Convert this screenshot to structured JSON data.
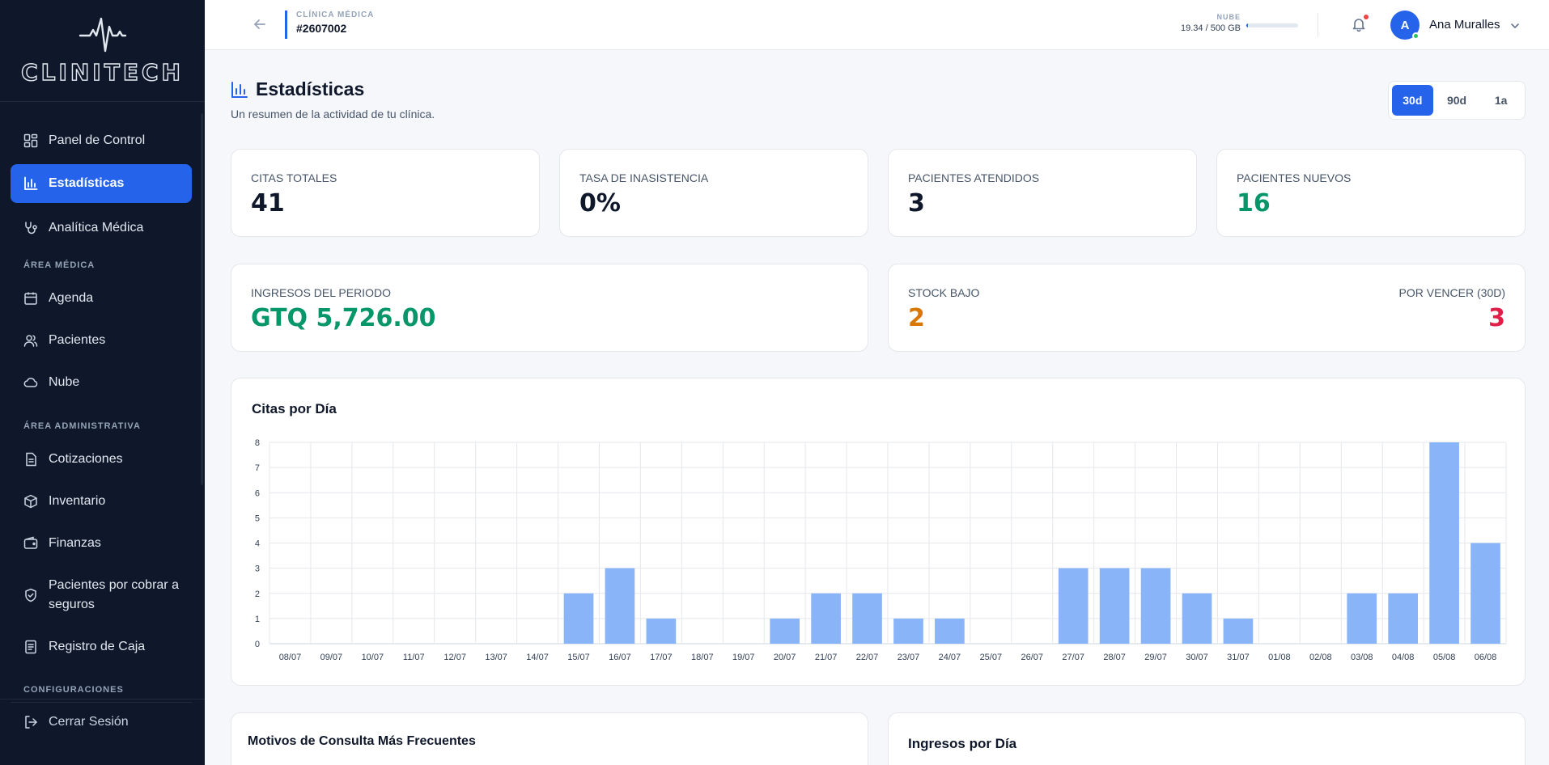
{
  "brand": {
    "name": "CLINITECH"
  },
  "sidebar": {
    "items": [
      {
        "label": "Panel de Control",
        "icon": "dashboard-icon"
      },
      {
        "label": "Estadísticas",
        "icon": "bar-chart-icon",
        "active": true
      },
      {
        "label": "Analítica Médica",
        "icon": "stethoscope-icon"
      }
    ],
    "section_medical": "ÁREA MÉDICA",
    "medical_items": [
      {
        "label": "Agenda",
        "icon": "calendar-icon"
      },
      {
        "label": "Pacientes",
        "icon": "users-icon"
      },
      {
        "label": "Nube",
        "icon": "cloud-icon"
      }
    ],
    "section_admin": "ÁREA ADMINISTRATIVA",
    "admin_items": [
      {
        "label": "Cotizaciones",
        "icon": "document-icon"
      },
      {
        "label": "Inventario",
        "icon": "box-icon"
      },
      {
        "label": "Finanzas",
        "icon": "wallet-icon"
      },
      {
        "label": "Pacientes por cobrar a seguros",
        "icon": "shield-check-icon"
      },
      {
        "label": "Registro de Caja",
        "icon": "receipt-icon"
      }
    ],
    "section_config": "CONFIGURACIONES",
    "logout": "Cerrar Sesión"
  },
  "header": {
    "clinic_label": "CLÍNICA MÉDICA",
    "clinic_id": "#2607002",
    "cloud_label": "NUBE",
    "cloud_usage": "19.34 / 500 GB",
    "cloud_fraction": 0.039,
    "user_initial": "A",
    "user_name": "Ana Muralles"
  },
  "page": {
    "title": "Estadísticas",
    "subtitle": "Un resumen de la actividad de tu clínica.",
    "ranges": [
      "30d",
      "90d",
      "1a"
    ],
    "active_range": "30d"
  },
  "stats": {
    "citas_totales": {
      "label": "CITAS TOTALES",
      "value": "41"
    },
    "tasa_inasistencia": {
      "label": "TASA DE INASISTENCIA",
      "value": "0%"
    },
    "pacientes_atendidos": {
      "label": "PACIENTES ATENDIDOS",
      "value": "3"
    },
    "pacientes_nuevos": {
      "label": "PACIENTES NUEVOS",
      "value": "16"
    },
    "ingresos": {
      "label": "INGRESOS DEL PERIODO",
      "value": "GTQ 5,726.00"
    },
    "stock_bajo": {
      "label": "STOCK BAJO",
      "value": "2"
    },
    "por_vencer": {
      "label": "POR VENCER (30D)",
      "value": "3"
    }
  },
  "colors": {
    "accent": "#2563eb",
    "bar": "#8ab4f8",
    "sidebar": "#0f172a",
    "green": "#059669",
    "orange": "#d97706",
    "red": "#e11d48"
  },
  "chart_data": {
    "type": "bar",
    "title": "Citas por Día",
    "categories": [
      "08/07",
      "09/07",
      "10/07",
      "11/07",
      "12/07",
      "13/07",
      "14/07",
      "15/07",
      "16/07",
      "17/07",
      "18/07",
      "19/07",
      "20/07",
      "21/07",
      "22/07",
      "23/07",
      "24/07",
      "25/07",
      "26/07",
      "27/07",
      "28/07",
      "29/07",
      "30/07",
      "31/07",
      "01/08",
      "02/08",
      "03/08",
      "04/08",
      "05/08",
      "06/08"
    ],
    "values": [
      0,
      0,
      0,
      0,
      0,
      0,
      0,
      2,
      3,
      1,
      0,
      0,
      1,
      2,
      2,
      1,
      1,
      0,
      0,
      3,
      3,
      3,
      2,
      1,
      0,
      0,
      2,
      2,
      8,
      4
    ],
    "ylim": [
      0,
      8
    ],
    "yticks": [
      0,
      1,
      2,
      3,
      4,
      5,
      6,
      7,
      8
    ],
    "grid": true
  },
  "bottom": {
    "left_title": "Motivos de Consulta Más Frecuentes",
    "right_title": "Ingresos por Día"
  }
}
